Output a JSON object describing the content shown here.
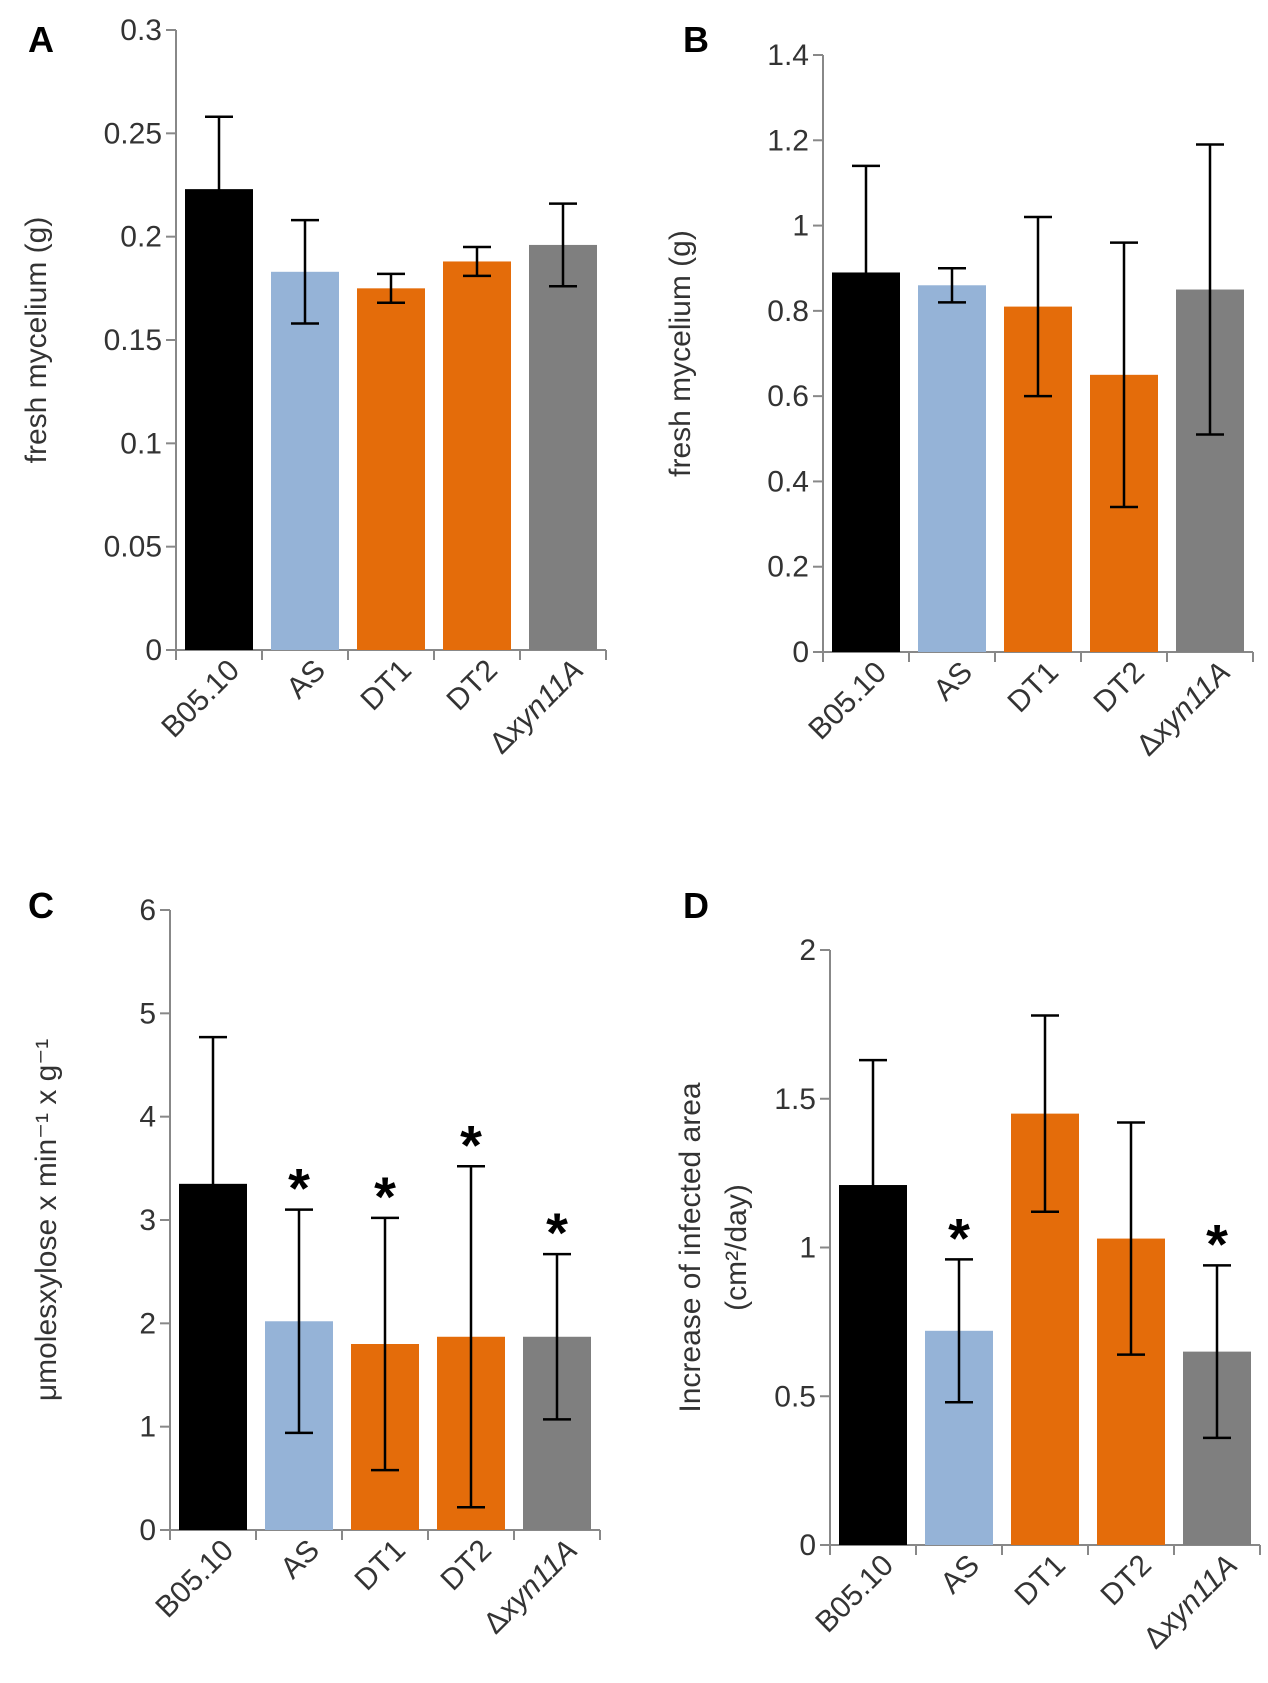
{
  "colors": {
    "B05.10": "#000000",
    "AS": "#95b3d7",
    "DT1": "#e46c0a",
    "DT2": "#e46c0a",
    "Δxyn11A": "#7f7f7f",
    "axis": "#888888",
    "error_bar": "#000000"
  },
  "chart_data": [
    {
      "panel": "A",
      "type": "bar",
      "categories": [
        "B05.10",
        "AS",
        "DT1",
        "DT2",
        "Δxyn11A"
      ],
      "values": [
        0.223,
        0.183,
        0.175,
        0.188,
        0.196
      ],
      "errors": [
        0.035,
        0.025,
        0.007,
        0.007,
        0.02
      ],
      "significant": [
        false,
        false,
        false,
        false,
        false
      ],
      "ylabel": "fresh mycelium (g)",
      "ylim": [
        0,
        0.3
      ],
      "yticks": [
        "0",
        "0.05",
        "0.1",
        "0.15",
        "0.2",
        "0.25",
        "0.3"
      ],
      "ytick_values": [
        0,
        0.05,
        0.1,
        0.15,
        0.2,
        0.25,
        0.3
      ]
    },
    {
      "panel": "B",
      "type": "bar",
      "categories": [
        "B05.10",
        "AS",
        "DT1",
        "DT2",
        "Δxyn11A"
      ],
      "values": [
        0.89,
        0.86,
        0.81,
        0.65,
        0.85
      ],
      "errors": [
        0.25,
        0.04,
        0.21,
        0.31,
        0.34
      ],
      "significant": [
        false,
        false,
        false,
        false,
        false
      ],
      "ylabel": "fresh mycelium (g)",
      "ylim": [
        0,
        1.4
      ],
      "yticks": [
        "0",
        "0.2",
        "0.4",
        "0.6",
        "0.8",
        "1",
        "1.2",
        "1.4"
      ],
      "ytick_values": [
        0,
        0.2,
        0.4,
        0.6,
        0.8,
        1.0,
        1.2,
        1.4
      ]
    },
    {
      "panel": "C",
      "type": "bar",
      "categories": [
        "B05.10",
        "AS",
        "DT1",
        "DT2",
        "Δxyn11A"
      ],
      "values": [
        3.35,
        2.02,
        1.8,
        1.87,
        1.87
      ],
      "errors": [
        1.42,
        1.08,
        1.22,
        1.65,
        0.8
      ],
      "significant": [
        false,
        true,
        true,
        true,
        true
      ],
      "ylabel": "μmolesxylose x min⁻¹ x g⁻¹",
      "ylim": [
        0,
        6
      ],
      "yticks": [
        "0",
        "1",
        "2",
        "3",
        "4",
        "5",
        "6"
      ],
      "ytick_values": [
        0,
        1,
        2,
        3,
        4,
        5,
        6
      ]
    },
    {
      "panel": "D",
      "type": "bar",
      "categories": [
        "B05.10",
        "AS",
        "DT1",
        "DT2",
        "Δxyn11A"
      ],
      "values": [
        1.21,
        0.72,
        1.45,
        1.03,
        0.65
      ],
      "errors": [
        0.42,
        0.24,
        0.33,
        0.39,
        0.29
      ],
      "significant": [
        false,
        true,
        false,
        false,
        true
      ],
      "ylabel": "Increase of infected area",
      "ylabel2": "(cm²/day)",
      "ylim": [
        0,
        2
      ],
      "yticks": [
        "0",
        "0.5",
        "1",
        "1.5",
        "2"
      ],
      "ytick_values": [
        0,
        0.5,
        1.0,
        1.5,
        2.0
      ]
    }
  ],
  "significance_marker": "*"
}
